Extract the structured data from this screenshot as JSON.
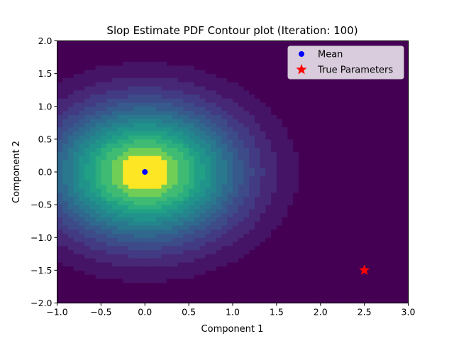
{
  "chart_data": {
    "type": "heatmap",
    "title": "Slop Estimate PDF Contour plot (Iteration: 100)",
    "xlabel": "Component 1",
    "ylabel": "Component 2",
    "xlim": [
      -1.0,
      3.0
    ],
    "ylim": [
      -2.0,
      2.0
    ],
    "x_ticks": [
      "−1.0",
      "−0.5",
      "0.0",
      "0.5",
      "1.0",
      "1.5",
      "2.0",
      "2.5",
      "3.0"
    ],
    "y_ticks": [
      "−2.0",
      "−1.5",
      "−1.0",
      "−0.5",
      "0.0",
      "0.5",
      "1.0",
      "1.5",
      "2.0"
    ],
    "x_tick_values": [
      -1.0,
      -0.5,
      0.0,
      0.5,
      1.0,
      1.5,
      2.0,
      2.5,
      3.0
    ],
    "y_tick_values": [
      -2.0,
      -1.5,
      -1.0,
      -0.5,
      0.0,
      0.5,
      1.0,
      1.5,
      2.0
    ],
    "pdf": {
      "mean": [
        0.0,
        0.0
      ],
      "sigma_x": 0.75,
      "sigma_y": 0.72,
      "grid": 64
    },
    "colormap": "viridis",
    "series": [
      {
        "name": "Mean",
        "marker": "circle",
        "color": "#0000ff",
        "points": [
          [
            0.0,
            0.0
          ]
        ]
      },
      {
        "name": "True Parameters",
        "marker": "star",
        "color": "#ff0000",
        "points": [
          [
            2.5,
            -1.5
          ]
        ]
      }
    ],
    "legend_position": "top-right",
    "grid": false
  }
}
